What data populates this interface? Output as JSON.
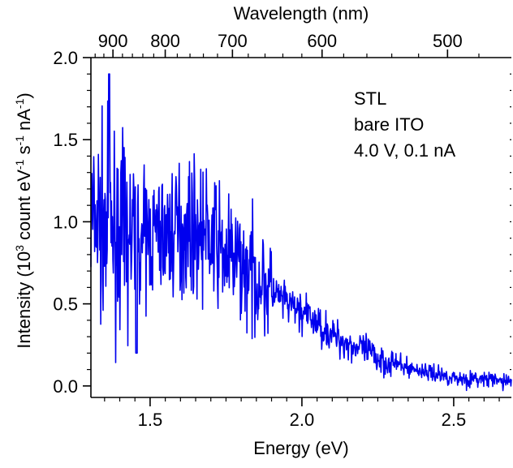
{
  "chart_data": {
    "type": "line",
    "xlabel": "Energy (eV)",
    "x2label": "Wavelength (nm)",
    "ylabel_parts": [
      "Intensity (10",
      "3",
      " count eV",
      "-1",
      " s",
      "-1",
      " nA",
      "-1",
      ")"
    ],
    "xlim": [
      1.305,
      2.69
    ],
    "ylim": [
      -0.07,
      2.0
    ],
    "x_ticks": [
      "1.5",
      "2.0",
      "2.5"
    ],
    "x_tick_values": [
      1.5,
      2.0,
      2.5
    ],
    "y_ticks": [
      "0.0",
      "0.5",
      "1.0",
      "1.5",
      "2.0"
    ],
    "y_tick_values": [
      0.0,
      0.5,
      1.0,
      1.5,
      2.0
    ],
    "top_ticks": [
      "900",
      "800",
      "700",
      "600",
      "500"
    ],
    "top_tick_values_nm": [
      900,
      800,
      700,
      600,
      500
    ],
    "annotation": [
      "STL",
      "bare ITO",
      "4.0 V, 0.1 nA"
    ],
    "line_color": "#0000ee",
    "grid": false,
    "series": [
      {
        "x": [
          1.31,
          1.33,
          1.35,
          1.37,
          1.4,
          1.43,
          1.45,
          1.47,
          1.5,
          1.55,
          1.6,
          1.63,
          1.65,
          1.7,
          1.75,
          1.8,
          1.85,
          1.88,
          1.9,
          1.95,
          2.0,
          2.05,
          2.1,
          2.15,
          2.2,
          2.25,
          2.3,
          2.35,
          2.4,
          2.45,
          2.5,
          2.55,
          2.6,
          2.65,
          2.69
        ],
        "y": [
          1.0,
          1.0,
          0.95,
          0.95,
          0.92,
          0.9,
          0.88,
          0.9,
          0.92,
          0.93,
          0.95,
          0.97,
          0.96,
          0.9,
          0.8,
          0.73,
          0.66,
          0.62,
          0.57,
          0.5,
          0.45,
          0.38,
          0.31,
          0.26,
          0.22,
          0.17,
          0.14,
          0.11,
          0.09,
          0.07,
          0.05,
          0.04,
          0.04,
          0.03,
          0.03
        ]
      }
    ]
  }
}
